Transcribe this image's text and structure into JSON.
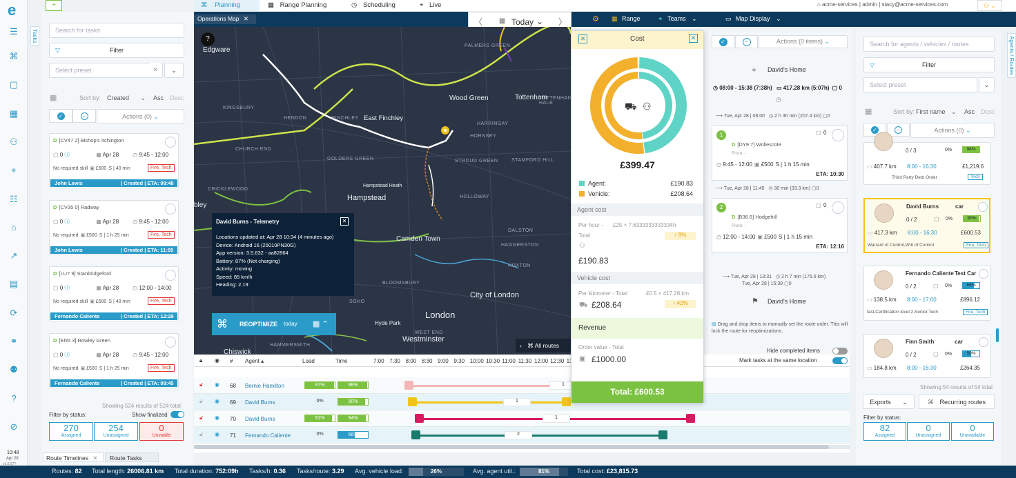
{
  "rail": {
    "logo": "e",
    "tasks_tab": "Tasks",
    "clock_time": "10:48",
    "clock_date": "Apr 28",
    "version": "v1.0.577",
    "build": "3c3c5ac4e"
  },
  "left": {
    "search_placeholder": "Search for tasks",
    "filter_label": "Filter",
    "preset_placeholder": "Select preset",
    "sort_by_label": "Sort by:",
    "sort_value": "Created",
    "asc": "Asc",
    "desc": "Desc",
    "actions": "Actions (0)",
    "cards": [
      {
        "prefix": "D",
        "title": "[CV47 2] Bishop's Itchington",
        "count": "0",
        "date": "Apr 28",
        "time": "9:45 - 12:00",
        "skill": "No required skill",
        "price": "£500",
        "dur": "S | 40 min",
        "tag": "Fire, Tech",
        "agent": "John Lewis",
        "status": "| Created | ETA: 09:48"
      },
      {
        "prefix": "D",
        "title": "[CV35 0] Radway",
        "count": "0",
        "date": "Apr 28",
        "time": "9:45 - 12:00",
        "skill": "No required",
        "price": "£500",
        "dur": "S | 1 h 25 min",
        "tag": "Fire, Tech",
        "agent": "John Lewis",
        "status": "| Created | ETA: 11:05"
      },
      {
        "prefix": "D",
        "title": "[LU7 9] Stanbridgeford",
        "count": "0",
        "date": "Apr 28",
        "time": "12:00 - 14:00",
        "skill": "No required skill",
        "price": "£500",
        "dur": "S | 40 min",
        "tag": "Fire, Tech",
        "agent": "Fernando Caliente",
        "status": "| Created | ETA: 12:29"
      },
      {
        "prefix": "D",
        "title": "[EN5 3] Rowley Green",
        "count": "0",
        "date": "Apr 28",
        "time": "9:45 - 12:00",
        "skill": "No required",
        "price": "£500",
        "dur": "S | 1 h 25 min",
        "tag": "Fire, Tech",
        "agent": "Fernando Caliente",
        "status": "| Created | ETA: 09:45"
      }
    ],
    "showing": "Showing 524 results of 524 total",
    "filter_status": "Filter by status:",
    "show_finalized": "Show finalized",
    "counters": [
      {
        "n": "270",
        "l": "Assigned"
      },
      {
        "n": "254",
        "l": "Unassigned"
      },
      {
        "n": "0",
        "l": "Unviable"
      }
    ],
    "bottom_tabs": [
      "Route Timelines",
      "Route Tasks"
    ]
  },
  "nav": {
    "tabs": [
      "Planning",
      "Range Planning",
      "Scheduling",
      "Live"
    ],
    "account": "acme-services",
    "user": "admin",
    "email": "stacy@acme-services.com"
  },
  "toolbar": {
    "map_tab": "Operations Map",
    "date": "Today",
    "range": "Range",
    "teams": "Teams",
    "map_display": "Map Display"
  },
  "map": {
    "labels_small": [
      "PALMERS GREEN",
      "HENDON",
      "FINCHLEY",
      "KINGSBURY",
      "CHURCH END",
      "GOLDERS GREEN",
      "CRICKLEWOOD",
      "HORNSEY",
      "STROUD GREEN",
      "STAMFORD HILL",
      "DALSTON",
      "HAGGERSTON",
      "HOXTON",
      "BLOOMSBURY",
      "SOHO",
      "HAMMERSMITH",
      "HOLLOWAY",
      "TOTTENHAM HALE",
      "HARRINGAY",
      "WEST END"
    ],
    "labels_big": [
      "Edgware",
      "Wood Green",
      "Tottenham",
      "East Finchley",
      "Hampstead Heath",
      "Hampstead",
      "Camden Town",
      "City of London",
      "London",
      "Westminster",
      "Hyde Park",
      "Chiswick",
      "bley"
    ],
    "telemetry_title": "David Burns - Telemetry",
    "telemetry_lines": [
      "Locations updated at: Apr 28 10:34 (4 minutes ago)",
      "Device: Android 16 (25010PN30G)",
      "App version: 3.5.632 - aa82864",
      "Battery: 87% (Not charging)",
      "Activity: moving",
      "Speed: 85 km/h",
      "Heading: 2.19"
    ],
    "reoptimize": "REOPTIMIZE",
    "reoptimize_sub": "today",
    "all_routes": "All routes"
  },
  "timeline": {
    "headers": [
      "#",
      "Agent",
      "Load",
      "Time"
    ],
    "hours": [
      "7:00",
      "7:30",
      "8:00",
      "8:30",
      "9:00",
      "9:30",
      "10:00",
      "10:30",
      "11:00",
      "11:30",
      "12:00",
      "12:30",
      "13:00",
      "13:30",
      "14:00"
    ],
    "rows": [
      {
        "num": "68",
        "agent": "Bernie Hamilton",
        "load": "97%",
        "time": "98%",
        "load_frac": 0.97,
        "time_frac": 0.98,
        "color": "#f4b6b6",
        "locked": true
      },
      {
        "num": "69",
        "agent": "David Burns",
        "load": "0%",
        "time": "90%",
        "load_frac": 0.0,
        "time_frac": 0.9,
        "color": "#f2c318",
        "locked": false
      },
      {
        "num": "70",
        "agent": "David Burns",
        "load": "91%",
        "time": "94%",
        "load_frac": 0.91,
        "time_frac": 0.94,
        "color": "#d81b60",
        "locked": true
      },
      {
        "num": "71",
        "agent": "Fernando Caliente",
        "load": "0%",
        "time": "56%",
        "load_frac": 0.0,
        "time_frac": 0.56,
        "color": "#1b7a6e",
        "locked": false
      }
    ],
    "seg_labels": [
      "1",
      "1",
      "1",
      "2"
    ]
  },
  "cost": {
    "title": "Cost",
    "total": "£399.47",
    "agent_label": "Agent:",
    "agent_value": "£190.83",
    "vehicle_label": "Vehicle:",
    "vehicle_value": "£208.64",
    "agent_fraction": 0.478,
    "agent_cost_title": "Agent cost",
    "per_hour_label": "Per hour -",
    "per_hour_formula": "£25 × 7.6333333333334h",
    "total_label": "Total",
    "agent_pct": "9%",
    "agent_total": "£190.83",
    "vehicle_cost_title": "Vehicle cost",
    "per_km_label": "Per kilometer - Total",
    "per_km_formula": "£0.5 × 417.28 km",
    "vehicle_total": "£208.64",
    "vehicle_pct": "42%",
    "revenue_title": "Revenue",
    "order_label": "Order value - Total",
    "order_value": "£1000.00",
    "grand_total": "Total: £600.53",
    "colors": {
      "agent": "#5fd4c6",
      "vehicle": "#f2b02c"
    }
  },
  "route": {
    "actions": "Actions (0 items)",
    "home": "David's Home",
    "summary_time": "08:00 - 15:38 (7:38h)",
    "summary_dist": "417.28 km (5:07h)",
    "summary_count": "0",
    "leg1_date": "Tue, Apr 28 | 08:00",
    "leg1_info": "2 h 30 min (207.4 km)",
    "leg1_n": "0",
    "stops": [
      {
        "n": "1",
        "prefix": "D",
        "title": "[DY9 7] Wollescote",
        "from": "From: -",
        "time": "9:45 - 12:00",
        "price": "£500",
        "dur": "S | 1 h 15 min",
        "eta": "ETA: 10:30",
        "count": "0"
      },
      {
        "n": "2",
        "prefix": "D",
        "title": "[B36 8] Hodgehill",
        "from": "From: -",
        "time": "12:00 - 14:00",
        "price": "£500",
        "dur": "S | 1 h 15 min",
        "eta": "ETA: 12:16",
        "count": "0"
      }
    ],
    "leg2_date": "Tue, Apr 28 | 11:45",
    "leg2_info": "30 min (33.3 km)",
    "leg2_n": "0",
    "leg3_date": "Tue, Apr 28 | 13:31",
    "leg3_info": "2 h 7 min (176.6 km)",
    "leg3_end": "Tue, Apr 28 | 15:38",
    "leg3_n": "0",
    "end_home": "David's Home",
    "hint": "Drag and drop items to manually set the route order. This will lock the route for reoptimizations.",
    "hide_completed": "Hide completed items",
    "mark_tasks": "Mark tasks at the same location"
  },
  "agents": {
    "tab": "Agents / Routes",
    "search_placeholder": "Search for agents / vehicles / routes",
    "filter_label": "Filter",
    "preset_placeholder": "Select preset",
    "sort_by_label": "Sort by:",
    "sort_value": "First name",
    "asc": "Asc",
    "desc": "Desc",
    "actions": "Actions (0)",
    "partial": {
      "ratio": "0 / 3",
      "pct": "0%",
      "fill": "98%",
      "dist": "407.7 km",
      "hours": "8:00 - 16:30",
      "money": "£1,219.6",
      "skill": "Third Party Debt Order",
      "tag": "Tech"
    },
    "cards": [
      {
        "name": "David Burns",
        "vehicle": "car",
        "ratio": "0 / 2",
        "pct": "0%",
        "fill": "90%",
        "dist": "417.3 km",
        "hours": "8:00 - 16:30",
        "money": "£600.53",
        "skill": "Warrant of Control,Writ of Control",
        "tag": "Fire, Tech",
        "selected": true
      },
      {
        "name": "Fernando Caliente",
        "vehicle": "Test Car",
        "ratio": "0 / 2",
        "pct": "0%",
        "fill": "66%",
        "dist": "138.5 km",
        "hours": "8:00 - 17:00",
        "money": "£896.12",
        "skill": "fast,Certification level 2,Senior,Tech",
        "tag": "Fire, Tech",
        "selected": false
      },
      {
        "name": "Finn Smith",
        "vehicle": "car",
        "ratio": "0 / 2",
        "pct": "0%",
        "fill": "50%",
        "dist": "184.8 km",
        "hours": "8:00 - 16:30",
        "money": "£264.35",
        "skill": "",
        "tag": "",
        "selected": false
      }
    ],
    "showing": "Showing 54 results of 54 total",
    "exports": "Exports",
    "recurring": "Recurring routes",
    "filter_status": "Filter by status:",
    "counters": [
      {
        "n": "82",
        "l": "Assigned"
      },
      {
        "n": "0",
        "l": "Unassigned"
      },
      {
        "n": "0",
        "l": "Unavailable"
      }
    ]
  },
  "footer": {
    "routes_l": "Routes:",
    "routes_v": "82",
    "length_l": "Total length:",
    "length_v": "26006.81 km",
    "duration_l": "Total duration:",
    "duration_v": "752:09h",
    "tasksh_l": "Tasks/h:",
    "tasksh_v": "0.36",
    "tasksr_l": "Tasks/route:",
    "tasksr_v": "3.29",
    "vload_l": "Avg. vehicle load:",
    "vload_v": "26%",
    "vload_frac": 0.26,
    "autil_l": "Avg. agent util.:",
    "autil_v": "81%",
    "autil_frac": 0.81,
    "cost_l": "Total cost:",
    "cost_v": "£23,815.73"
  }
}
